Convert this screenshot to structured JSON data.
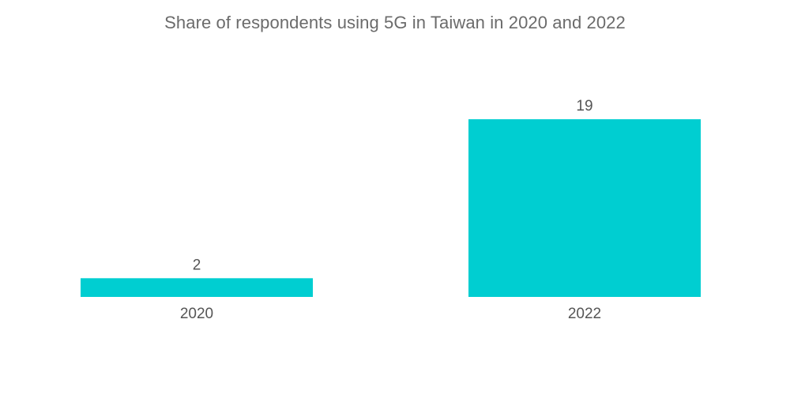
{
  "chart_data": {
    "type": "bar",
    "title": "Share of respondents using 5G in Taiwan in 2020 and 2022",
    "categories": [
      "2020",
      "2022"
    ],
    "values": [
      2,
      19
    ],
    "value_labels": [
      "2",
      "19"
    ],
    "xlabel": "",
    "ylabel": "",
    "ylim": [
      0,
      19
    ],
    "grid": false,
    "legend": "none",
    "bar_color": "#00ced1"
  }
}
